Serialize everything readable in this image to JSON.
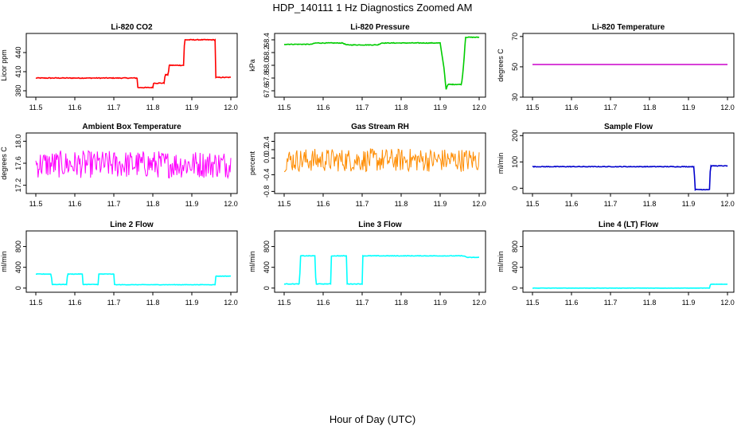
{
  "figure": {
    "title": "HDP_140111  1 Hz Diagnostics Zoomed AM",
    "xlabel": "Hour of Day (UTC)"
  },
  "chart_data": [
    {
      "type": "line",
      "title": "Li-820 CO2",
      "ylabel": "Licor ppm",
      "xlim": [
        11.5,
        12.0
      ],
      "ylim": [
        370,
        470
      ],
      "xticks": [
        "11.5",
        "11.6",
        "11.7",
        "11.8",
        "11.9",
        "12.0"
      ],
      "yticks": [
        "380",
        "410",
        "440"
      ],
      "color": "#ff0000",
      "noise": 0.6,
      "series": [
        {
          "x": [
            11.5,
            11.76,
            11.761,
            11.8,
            11.801,
            11.83,
            11.831,
            11.84,
            11.841,
            11.88,
            11.881,
            11.96,
            11.961,
            12.0
          ],
          "y": [
            400,
            400,
            385,
            385,
            392,
            392,
            405,
            405,
            420,
            420,
            460,
            460,
            401,
            401
          ]
        }
      ]
    },
    {
      "type": "line",
      "title": "Li-820 Pressure",
      "ylabel": "kPa",
      "xlim": [
        11.5,
        12.0
      ],
      "ylim": [
        67.5,
        68.5
      ],
      "xticks": [
        "11.5",
        "11.6",
        "11.7",
        "11.8",
        "11.9",
        "12.0"
      ],
      "yticks": [
        "67.6",
        "67.8",
        "68.0",
        "68.2",
        "68.4"
      ],
      "color": "#00cc00",
      "noise": 0.005,
      "series": [
        {
          "x": [
            11.5,
            11.57,
            11.58,
            11.65,
            11.66,
            11.74,
            11.75,
            11.9,
            11.91,
            11.915,
            11.92,
            11.955,
            11.96,
            11.965,
            12.0
          ],
          "y": [
            68.33,
            68.33,
            68.35,
            68.35,
            68.32,
            68.32,
            68.35,
            68.35,
            67.95,
            67.62,
            67.7,
            67.7,
            68.0,
            68.44,
            68.44
          ]
        }
      ]
    },
    {
      "type": "line",
      "title": "Li-820 Temperature",
      "ylabel": "degrees C",
      "xlim": [
        11.5,
        12.0
      ],
      "ylim": [
        30,
        72
      ],
      "xticks": [
        "11.5",
        "11.6",
        "11.7",
        "11.8",
        "11.9",
        "12.0"
      ],
      "yticks": [
        "30",
        "50",
        "70"
      ],
      "color": "#cc00cc",
      "noise": 0,
      "series": [
        {
          "x": [
            11.5,
            12.0
          ],
          "y": [
            51.5,
            51.5
          ]
        }
      ]
    },
    {
      "type": "line",
      "title": "Ambient Box Temperature",
      "ylabel": "degrees C",
      "xlim": [
        11.5,
        12.0
      ],
      "ylim": [
        17.05,
        18.15
      ],
      "xticks": [
        "11.5",
        "11.6",
        "11.7",
        "11.8",
        "11.9",
        "12.0"
      ],
      "yticks": [
        "17.2",
        "17.6",
        "18.0"
      ],
      "color": "#ff00ff",
      "noise": 0.25,
      "series": [
        {
          "x": [
            11.5,
            12.0
          ],
          "y": [
            17.58,
            17.58
          ]
        }
      ]
    },
    {
      "type": "line",
      "title": "Gas Stream RH",
      "ylabel": "percent",
      "xlim": [
        11.5,
        12.0
      ],
      "ylim": [
        -0.85,
        0.6
      ],
      "xticks": [
        "11.5",
        "11.6",
        "11.7",
        "11.8",
        "11.9",
        "12.0"
      ],
      "yticks": [
        "-0.8",
        "-0.4",
        "0.0",
        "0.2",
        "0.4"
      ],
      "color": "#ff8c00",
      "noise": 0.28,
      "series": [
        {
          "x": [
            11.5,
            12.0
          ],
          "y": [
            -0.05,
            -0.05
          ]
        }
      ]
    },
    {
      "type": "line",
      "title": "Sample Flow",
      "ylabel": "ml/min",
      "xlim": [
        11.5,
        12.0
      ],
      "ylim": [
        -20,
        210
      ],
      "xticks": [
        "11.5",
        "11.6",
        "11.7",
        "11.8",
        "11.9",
        "12.0"
      ],
      "yticks": [
        "0",
        "100",
        "200"
      ],
      "color": "#0000cc",
      "noise": 1.2,
      "series": [
        {
          "x": [
            11.5,
            11.915,
            11.916,
            11.955,
            11.956,
            12.0
          ],
          "y": [
            82,
            82,
            -5,
            -5,
            85,
            85
          ]
        }
      ]
    },
    {
      "type": "line",
      "title": "Line 2 Flow",
      "ylabel": "ml/min",
      "xlim": [
        11.5,
        12.0
      ],
      "ylim": [
        -80,
        1100
      ],
      "xticks": [
        "11.5",
        "11.6",
        "11.7",
        "11.8",
        "11.9",
        "12.0"
      ],
      "yticks": [
        "0",
        "400",
        "800"
      ],
      "color": "#00ffff",
      "noise": 4,
      "series": [
        {
          "x": [
            11.5,
            11.54,
            11.541,
            11.58,
            11.581,
            11.62,
            11.621,
            11.66,
            11.661,
            11.7,
            11.701,
            11.96,
            11.961,
            12.0
          ],
          "y": [
            270,
            270,
            70,
            70,
            270,
            270,
            70,
            70,
            270,
            270,
            65,
            65,
            230,
            230
          ]
        }
      ]
    },
    {
      "type": "line",
      "title": "Line 3 Flow",
      "ylabel": "ml/min",
      "xlim": [
        11.5,
        12.0
      ],
      "ylim": [
        -80,
        1100
      ],
      "xticks": [
        "11.5",
        "11.6",
        "11.7",
        "11.8",
        "11.9",
        "12.0"
      ],
      "yticks": [
        "0",
        "400",
        "800"
      ],
      "color": "#00ffff",
      "noise": 5,
      "series": [
        {
          "x": [
            11.5,
            11.54,
            11.541,
            11.58,
            11.581,
            11.62,
            11.621,
            11.66,
            11.661,
            11.7,
            11.701,
            11.96,
            11.97,
            12.0
          ],
          "y": [
            80,
            80,
            620,
            620,
            80,
            80,
            620,
            620,
            80,
            80,
            620,
            620,
            590,
            590
          ]
        }
      ]
    },
    {
      "type": "line",
      "title": "Line 4 (LT) Flow",
      "ylabel": "ml/min",
      "xlim": [
        11.5,
        12.0
      ],
      "ylim": [
        -80,
        1100
      ],
      "xticks": [
        "11.5",
        "11.6",
        "11.7",
        "11.8",
        "11.9",
        "12.0"
      ],
      "yticks": [
        "0",
        "400",
        "800"
      ],
      "color": "#00ffff",
      "noise": 2,
      "series": [
        {
          "x": [
            11.5,
            11.955,
            11.956,
            12.0
          ],
          "y": [
            0,
            0,
            75,
            75
          ]
        }
      ]
    }
  ]
}
